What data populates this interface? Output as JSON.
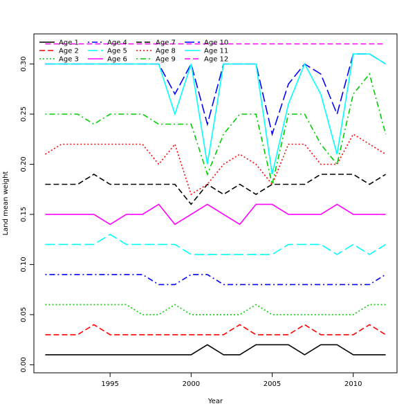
{
  "chart_data": {
    "type": "line",
    "title": "",
    "xlabel": "Year",
    "ylabel": "Land mean weight",
    "xlim": [
      1990.3,
      2012.7
    ],
    "ylim": [
      -0.008,
      0.33
    ],
    "grid": false,
    "legend_position": "top-left",
    "x": [
      1991,
      1992,
      1993,
      1994,
      1995,
      1996,
      1997,
      1998,
      1999,
      2000,
      2001,
      2002,
      2003,
      2004,
      2005,
      2006,
      2007,
      2008,
      2009,
      2010,
      2011,
      2012
    ],
    "x_ticks": [
      1995,
      2000,
      2005,
      2010
    ],
    "x_tick_labels": [
      "1995",
      "2000",
      "2005",
      "2010"
    ],
    "y_ticks": [
      0.0,
      0.05,
      0.1,
      0.15,
      0.2,
      0.25,
      0.3
    ],
    "y_tick_labels": [
      "0.00",
      "0.05",
      "0.10",
      "0.15",
      "0.20",
      "0.25",
      "0.30"
    ],
    "series": [
      {
        "name": "Age 1",
        "color": "#000000",
        "dash": "solid",
        "values": [
          0.01,
          0.01,
          0.01,
          0.01,
          0.01,
          0.01,
          0.01,
          0.01,
          0.01,
          0.01,
          0.02,
          0.01,
          0.01,
          0.02,
          0.02,
          0.02,
          0.01,
          0.02,
          0.02,
          0.01,
          0.01,
          0.01
        ]
      },
      {
        "name": "Age 2",
        "color": "#ff0000",
        "dash": "dashed",
        "values": [
          0.03,
          0.03,
          0.03,
          0.04,
          0.03,
          0.03,
          0.03,
          0.03,
          0.03,
          0.03,
          0.03,
          0.03,
          0.04,
          0.03,
          0.03,
          0.03,
          0.04,
          0.03,
          0.03,
          0.03,
          0.04,
          0.03
        ]
      },
      {
        "name": "Age 3",
        "color": "#00cd00",
        "dash": "dotted",
        "values": [
          0.06,
          0.06,
          0.06,
          0.06,
          0.06,
          0.06,
          0.05,
          0.05,
          0.06,
          0.05,
          0.05,
          0.05,
          0.05,
          0.06,
          0.05,
          0.05,
          0.05,
          0.05,
          0.05,
          0.05,
          0.06,
          0.06
        ]
      },
      {
        "name": "Age 4",
        "color": "#0000ff",
        "dash": "dotdash",
        "values": [
          0.09,
          0.09,
          0.09,
          0.09,
          0.09,
          0.09,
          0.09,
          0.08,
          0.08,
          0.09,
          0.09,
          0.08,
          0.08,
          0.08,
          0.08,
          0.08,
          0.08,
          0.08,
          0.08,
          0.08,
          0.08,
          0.09
        ]
      },
      {
        "name": "Age 5",
        "color": "#00ffff",
        "dash": "longdash",
        "values": [
          0.12,
          0.12,
          0.12,
          0.12,
          0.13,
          0.12,
          0.12,
          0.12,
          0.12,
          0.11,
          0.11,
          0.11,
          0.11,
          0.11,
          0.11,
          0.12,
          0.12,
          0.12,
          0.11,
          0.12,
          0.11,
          0.12
        ]
      },
      {
        "name": "Age 6",
        "color": "#ff00ff",
        "dash": "solid",
        "values": [
          0.15,
          0.15,
          0.15,
          0.15,
          0.14,
          0.15,
          0.15,
          0.16,
          0.14,
          0.15,
          0.16,
          0.15,
          0.14,
          0.16,
          0.16,
          0.15,
          0.15,
          0.15,
          0.16,
          0.15,
          0.15,
          0.15
        ]
      },
      {
        "name": "Age 7",
        "color": "#000000",
        "dash": "dashed",
        "values": [
          0.18,
          0.18,
          0.18,
          0.19,
          0.18,
          0.18,
          0.18,
          0.18,
          0.18,
          0.16,
          0.18,
          0.17,
          0.18,
          0.17,
          0.18,
          0.18,
          0.18,
          0.19,
          0.19,
          0.19,
          0.18,
          0.19
        ]
      },
      {
        "name": "Age 8",
        "color": "#ff0000",
        "dash": "dotted",
        "values": [
          0.21,
          0.22,
          0.22,
          0.22,
          0.22,
          0.22,
          0.22,
          0.2,
          0.22,
          0.17,
          0.18,
          0.2,
          0.21,
          0.2,
          0.18,
          0.22,
          0.22,
          0.2,
          0.2,
          0.23,
          0.22,
          0.21
        ]
      },
      {
        "name": "Age 9",
        "color": "#00cd00",
        "dash": "dotdash",
        "values": [
          0.25,
          0.25,
          0.25,
          0.24,
          0.25,
          0.25,
          0.25,
          0.24,
          0.24,
          0.24,
          0.19,
          0.23,
          0.25,
          0.25,
          0.18,
          0.25,
          0.25,
          0.22,
          0.2,
          0.27,
          0.29,
          0.23
        ]
      },
      {
        "name": "Age 10",
        "color": "#0000ff",
        "dash": "longdash",
        "values": [
          0.3,
          0.3,
          0.3,
          0.3,
          0.3,
          0.3,
          0.3,
          0.3,
          0.27,
          0.3,
          0.24,
          0.3,
          0.3,
          0.3,
          0.23,
          0.28,
          0.3,
          0.29,
          0.25,
          0.31,
          0.31,
          0.3
        ]
      },
      {
        "name": "Age 11",
        "color": "#00ffff",
        "dash": "solid",
        "values": [
          0.3,
          0.3,
          0.3,
          0.3,
          0.3,
          0.3,
          0.3,
          0.3,
          0.25,
          0.3,
          0.2,
          0.3,
          0.3,
          0.3,
          0.19,
          0.26,
          0.3,
          0.27,
          0.21,
          0.31,
          0.31,
          0.3
        ]
      },
      {
        "name": "Age 12",
        "color": "#ff00ff",
        "dash": "dashed",
        "values": [
          0.32,
          0.32,
          0.32,
          0.32,
          0.32,
          0.32,
          0.32,
          0.32,
          0.32,
          0.32,
          0.32,
          0.32,
          0.32,
          0.32,
          0.32,
          0.32,
          0.32,
          0.32,
          0.32,
          0.32,
          0.32,
          0.32
        ]
      }
    ]
  }
}
